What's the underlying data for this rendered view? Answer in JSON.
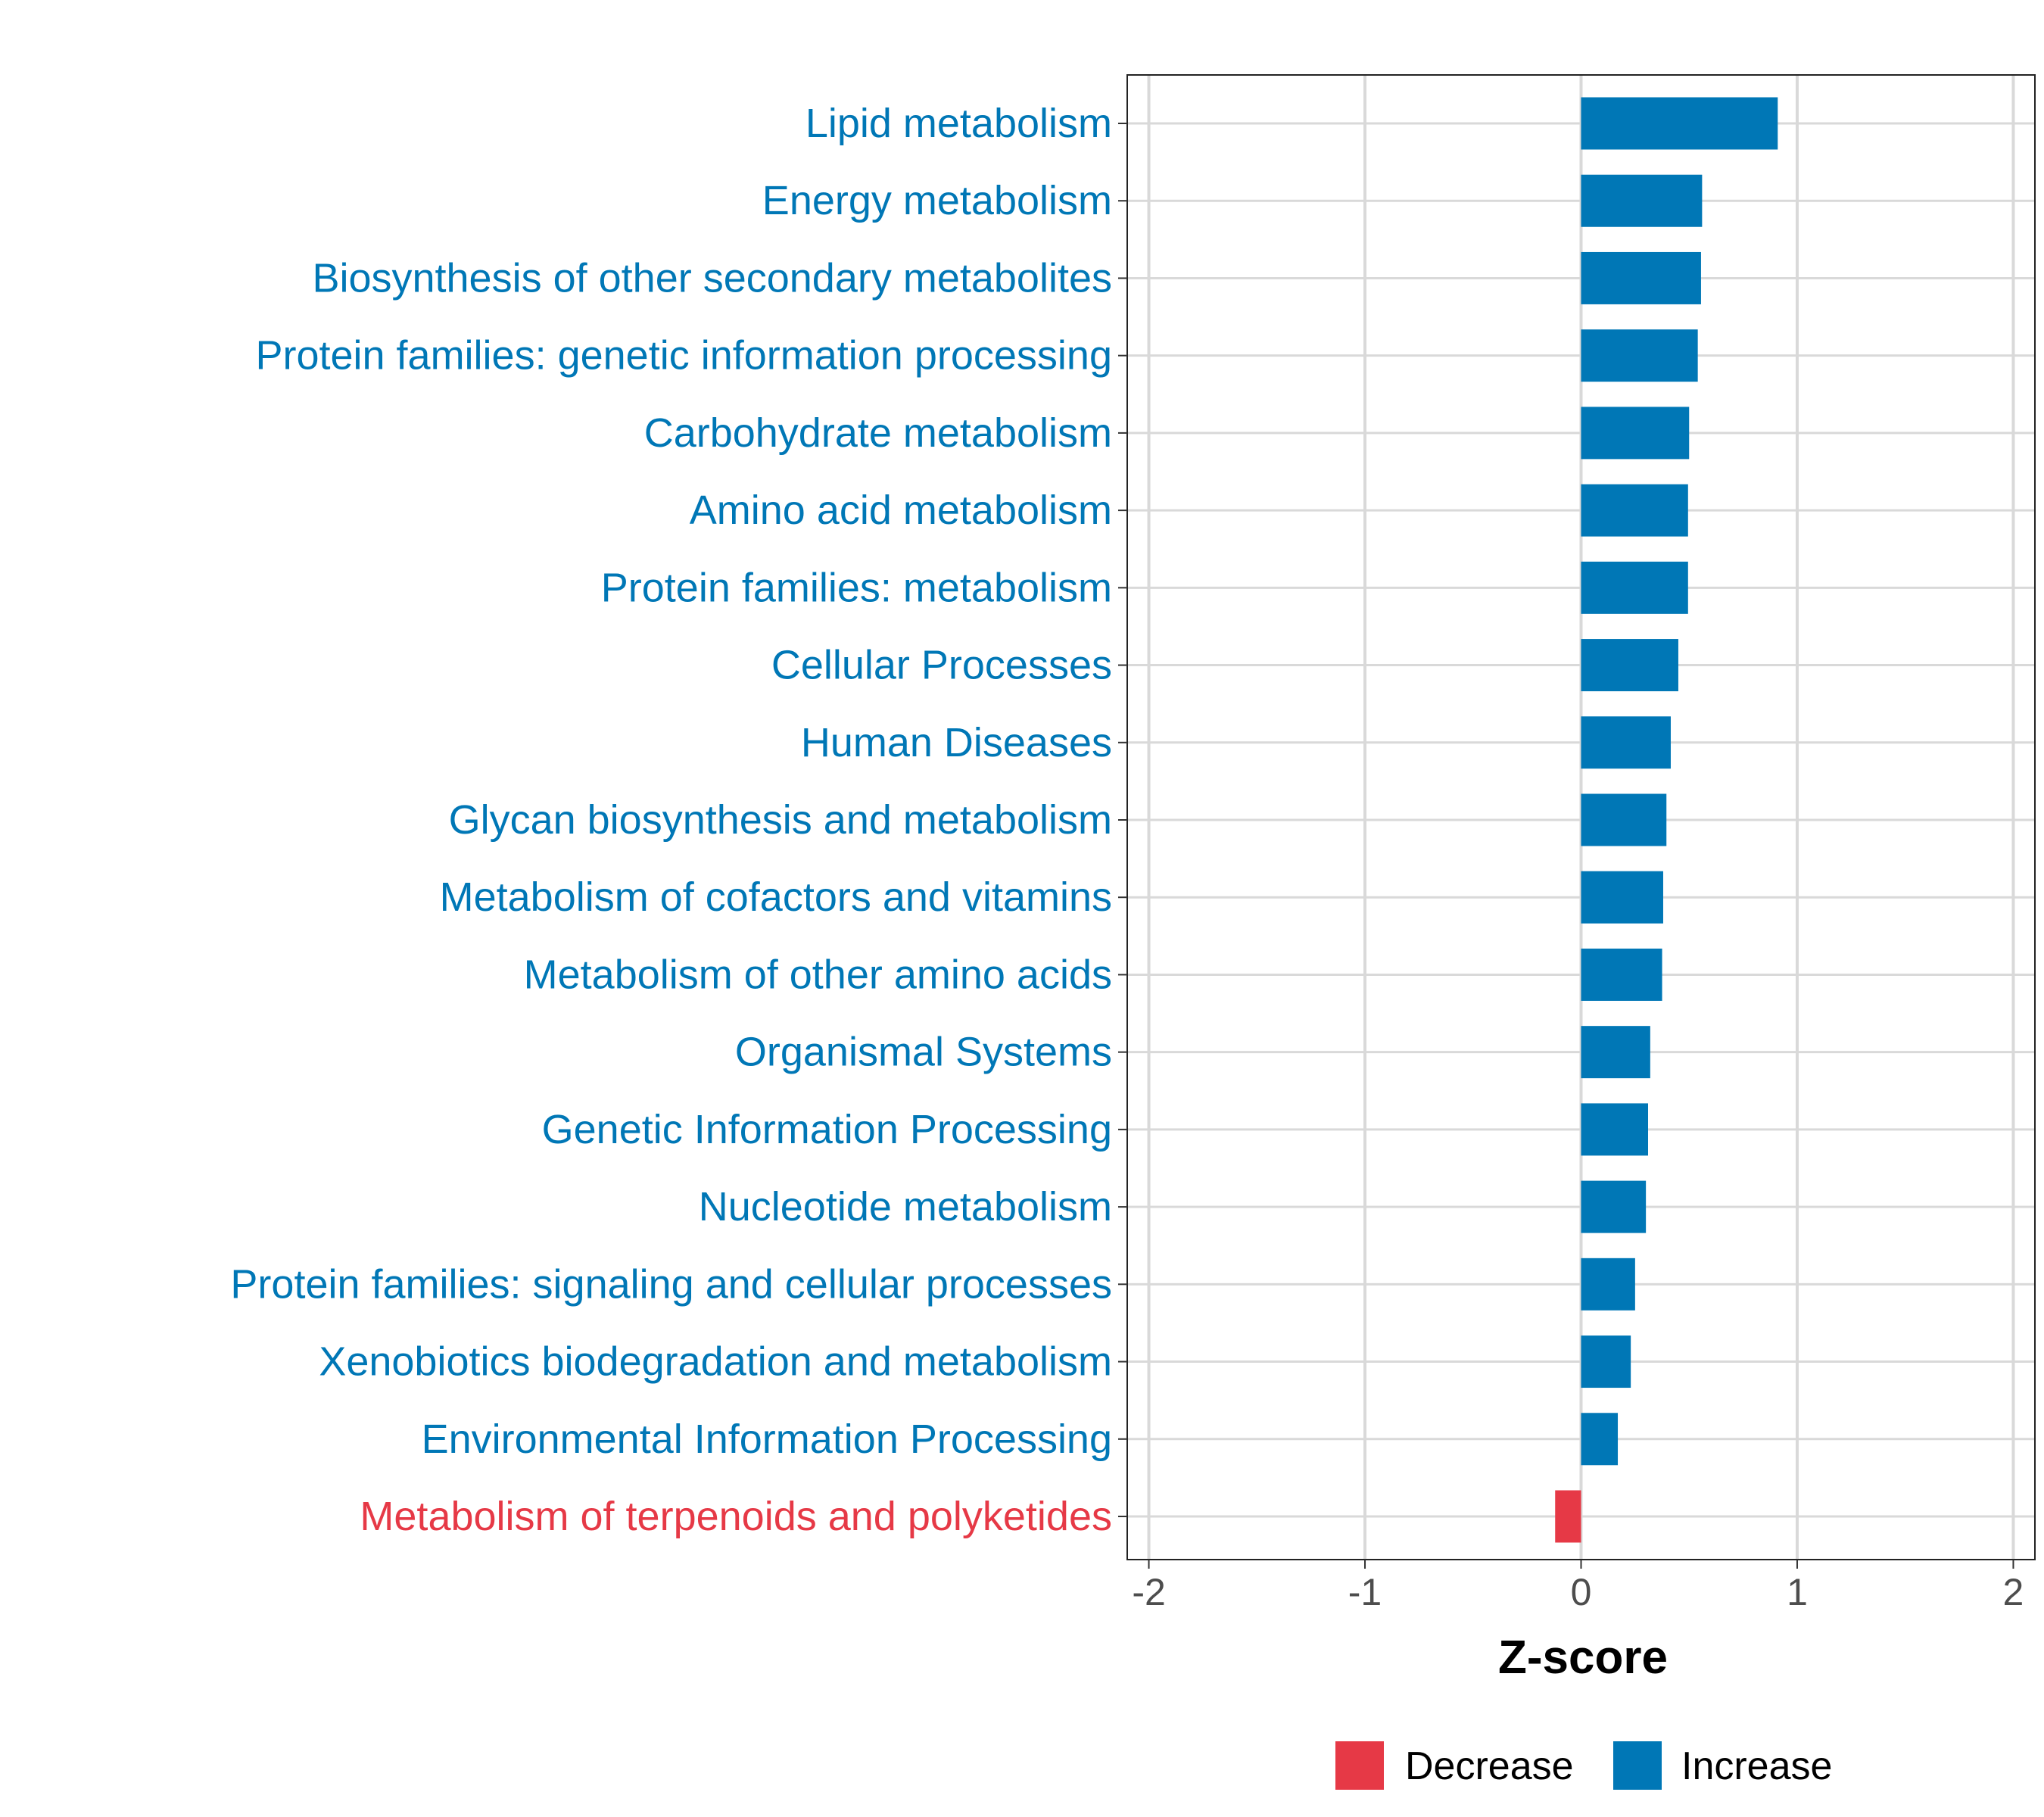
{
  "chart_data": {
    "type": "bar",
    "orientation": "horizontal",
    "title": "",
    "xlabel": "Z-score",
    "ylabel": "",
    "xlim": [
      -2.1,
      2.1
    ],
    "xticks": [
      -2,
      -1,
      0,
      1,
      2
    ],
    "xtick_labels": [
      "-2",
      "-1",
      "0",
      "1",
      "2"
    ],
    "grid": true,
    "legend_position": "bottom",
    "legend": [
      {
        "label": "Decrease",
        "color": "#E63946"
      },
      {
        "label": "Increase",
        "color": "#0077B6"
      }
    ],
    "categories": [
      "Lipid metabolism",
      "Energy metabolism",
      "Biosynthesis of other secondary metabolites",
      "Protein families: genetic information processing",
      "Carbohydrate metabolism",
      "Amino acid metabolism",
      "Protein families: metabolism",
      "Cellular Processes",
      "Human Diseases",
      "Glycan biosynthesis and metabolism",
      "Metabolism of cofactors and vitamins",
      "Metabolism of other amino acids",
      "Organismal Systems",
      "Genetic Information Processing",
      "Nucleotide metabolism",
      "Protein families: signaling and cellular processes",
      "Xenobiotics biodegradation and metabolism",
      "Environmental Information Processing",
      "Metabolism of terpenoids and polyketides"
    ],
    "values": [
      0.91,
      0.56,
      0.555,
      0.54,
      0.5,
      0.495,
      0.495,
      0.45,
      0.415,
      0.395,
      0.38,
      0.375,
      0.32,
      0.31,
      0.3,
      0.25,
      0.23,
      0.17,
      -0.12
    ],
    "groups": [
      "Increase",
      "Increase",
      "Increase",
      "Increase",
      "Increase",
      "Increase",
      "Increase",
      "Increase",
      "Increase",
      "Increase",
      "Increase",
      "Increase",
      "Increase",
      "Increase",
      "Increase",
      "Increase",
      "Increase",
      "Increase",
      "Decrease"
    ]
  }
}
